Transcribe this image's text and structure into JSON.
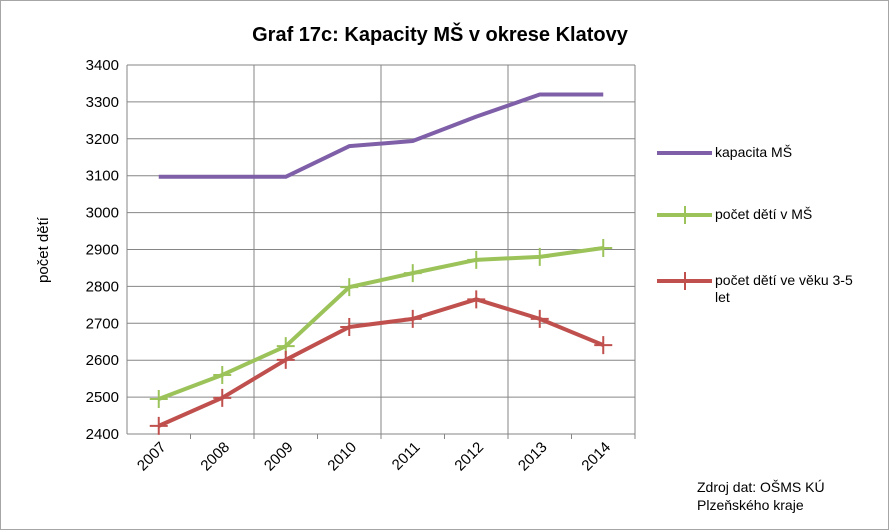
{
  "chart_data": {
    "type": "line",
    "title": "Graf 17c: Kapacity MŠ v okrese Klatovy",
    "y_label": "počet dětí",
    "source": "Zdroj dat: OŠMS KÚ Plzeňského kraje",
    "categories": [
      "2007",
      "2008",
      "2009",
      "2010",
      "2011",
      "2012",
      "2013",
      "2014"
    ],
    "series": [
      {
        "name": "kapacita MŠ",
        "color": "#7f5fa8",
        "marker": "none",
        "values": [
          3097,
          3097,
          3097,
          3180,
          3194,
          3260,
          3320,
          3320
        ]
      },
      {
        "name": "počet dětí v MŠ",
        "color": "#9bc35a",
        "marker": "plus",
        "values": [
          2495,
          2560,
          2638,
          2798,
          2836,
          2872,
          2880,
          2904
        ]
      },
      {
        "name": "počet dětí ve věku 3-5 let",
        "color": "#c0504d",
        "marker": "plus",
        "values": [
          2422,
          2498,
          2601,
          2690,
          2712,
          2765,
          2712,
          2641
        ]
      }
    ],
    "ylim": [
      2400,
      3400
    ],
    "yticks": [
      2400,
      2500,
      2600,
      2700,
      2800,
      2900,
      3000,
      3100,
      3200,
      3300,
      3400
    ],
    "grid": true,
    "legend": "right"
  }
}
